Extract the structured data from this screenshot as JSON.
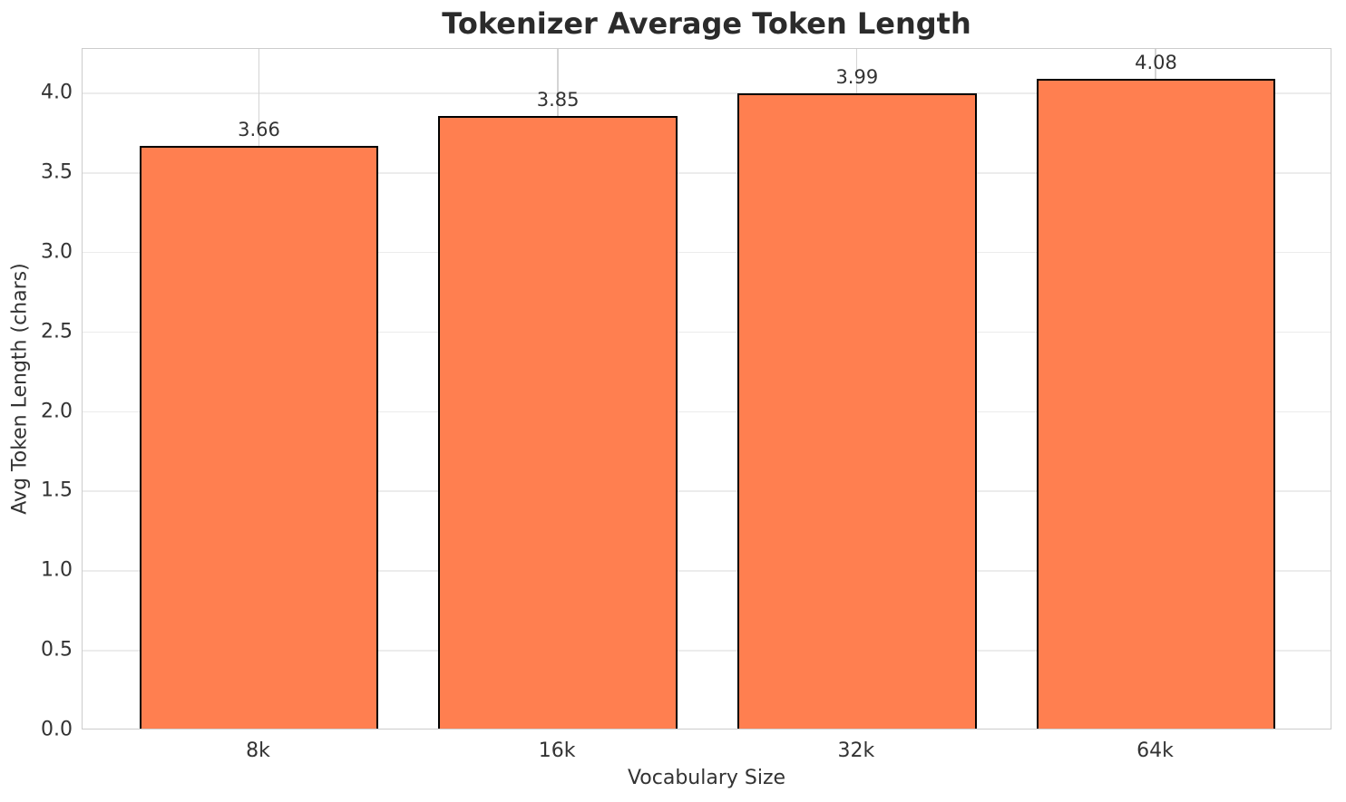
{
  "chart_data": {
    "type": "bar",
    "title": "Tokenizer Average Token Length",
    "xlabel": "Vocabulary Size",
    "ylabel": "Avg Token Length (chars)",
    "categories": [
      "8k",
      "16k",
      "32k",
      "64k"
    ],
    "values": [
      3.66,
      3.85,
      3.99,
      4.08
    ],
    "value_labels": [
      "3.66",
      "3.85",
      "3.99",
      "4.08"
    ],
    "yticks": [
      0.0,
      0.5,
      1.0,
      1.5,
      2.0,
      2.5,
      3.0,
      3.5,
      4.0
    ],
    "ytick_labels": [
      "0.0",
      "0.5",
      "1.0",
      "1.5",
      "2.0",
      "2.5",
      "3.0",
      "3.5",
      "4.0"
    ],
    "ylim": [
      0,
      4.28
    ],
    "grid": true,
    "legend": "none",
    "bar_width": 0.8,
    "x_margin": 0.59,
    "bar_color": "#FF7F50",
    "bar_edge_color": "#000000"
  },
  "colors": {
    "title_text": "#2b2b2b",
    "tick_text": "#333333",
    "grid_horizontal": "#ececec",
    "grid_vertical": "#d4d4d4",
    "plot_border": "#cccccc",
    "background": "#ffffff"
  }
}
